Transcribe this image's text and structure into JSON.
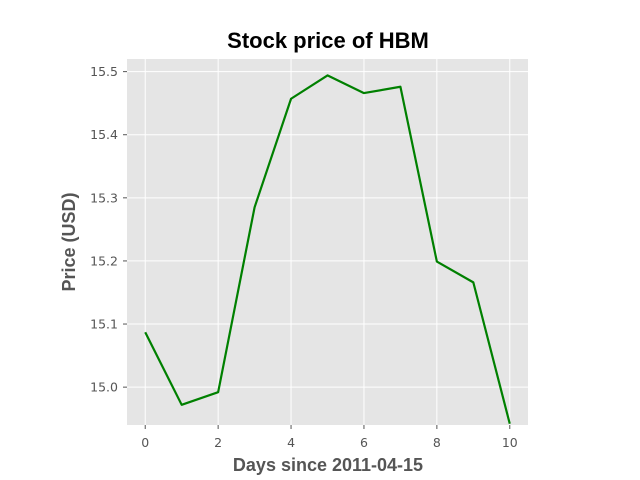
{
  "chart_data": {
    "type": "line",
    "title": "Stock price of HBM",
    "xlabel": "Days since 2011-04-15",
    "ylabel": "Price (USD)",
    "xlim": [
      -0.5,
      10.5
    ],
    "ylim": [
      14.94,
      15.52
    ],
    "x_ticks": [
      0,
      2,
      4,
      6,
      8,
      10
    ],
    "y_ticks": [
      15.0,
      15.1,
      15.2,
      15.3,
      15.4,
      15.5
    ],
    "y_tick_labels": [
      "15.0",
      "15.1",
      "15.2",
      "15.3",
      "15.4",
      "15.5"
    ],
    "grid": true,
    "series": [
      {
        "x": [
          0,
          1,
          2,
          3,
          4,
          5,
          6,
          7,
          8,
          9,
          10
        ],
        "values": [
          15.087,
          14.972,
          14.992,
          15.285,
          15.457,
          15.494,
          15.466,
          15.476,
          15.199,
          15.166,
          14.942
        ],
        "color": "#008000"
      }
    ]
  },
  "colors": {
    "plot_background": "#e5e5e5",
    "grid": "#ffffff",
    "line": "#008000"
  }
}
